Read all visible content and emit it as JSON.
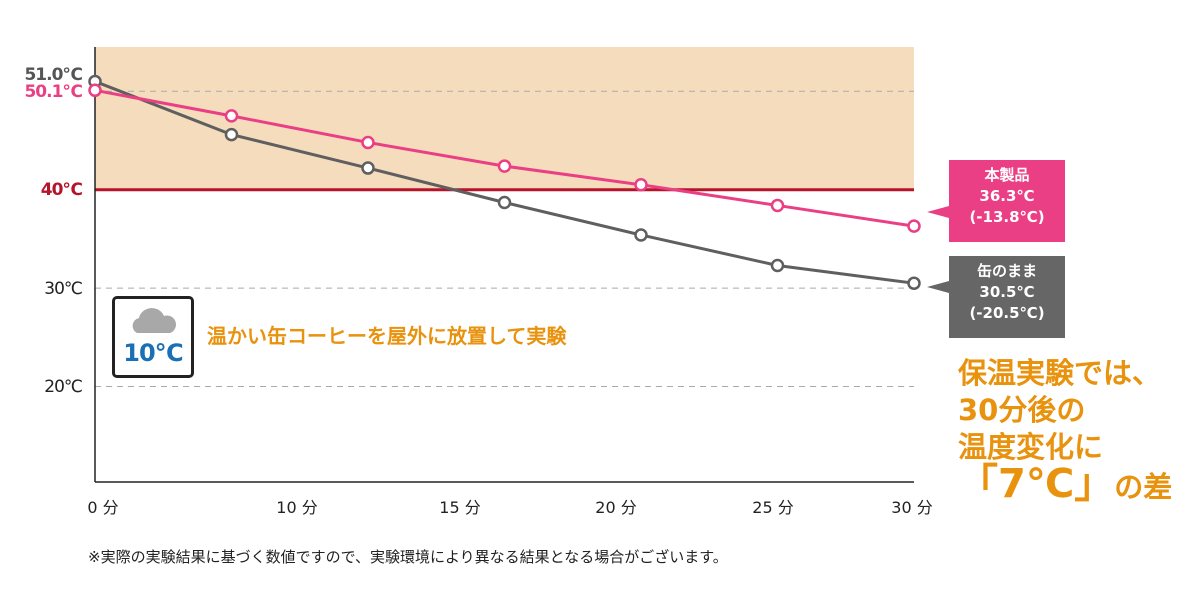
{
  "chart_data": {
    "type": "line",
    "x": [
      0,
      5,
      10,
      15,
      20,
      25,
      30
    ],
    "x_unit": "分",
    "x_tick_labels": [
      "0 分",
      "10 分",
      "15 分",
      "20 分",
      "25 分",
      "30 分"
    ],
    "ylim": [
      10.3,
      54.5
    ],
    "y_tick_labels": [
      "51.0℃",
      "50.1℃",
      "40℃",
      "30℃",
      "20℃"
    ],
    "grid": "dashed horizontal at 50, 30, 20",
    "threshold": {
      "value": 40,
      "label": "40℃",
      "color": "#b5142a",
      "band_above_color": "#f4dcbd"
    },
    "series": [
      {
        "name": "本製品",
        "color": "#ea3f84",
        "values": [
          50.1,
          47.5,
          44.8,
          42.4,
          40.5,
          38.4,
          36.3
        ]
      },
      {
        "name": "缶のまま",
        "color": "#5f5f5f",
        "values": [
          51.0,
          45.6,
          42.2,
          38.7,
          35.4,
          32.3,
          30.5
        ]
      }
    ],
    "annotations": {
      "product": {
        "name": "本製品",
        "value": "36.3℃",
        "diff": "(-13.8℃)"
      },
      "can": {
        "name": "缶のまま",
        "value": "30.5℃",
        "diff": "(-20.5℃)"
      }
    }
  },
  "weather": {
    "icon": "cloud-icon",
    "temp": "10℃"
  },
  "experiment_label": "温かい缶コーヒーを屋外に放置して実験",
  "conclusion": {
    "line1": "保温実験では、",
    "line2": "30分後の",
    "line3": "温度変化に",
    "line4_open": "「",
    "line4_big": "7℃",
    "line4_close": "」",
    "line4_tail": "の差"
  },
  "footnote": "※実際の実験結果に基づく数値ですので、実験環境により異なる結果となる場合がございます。"
}
